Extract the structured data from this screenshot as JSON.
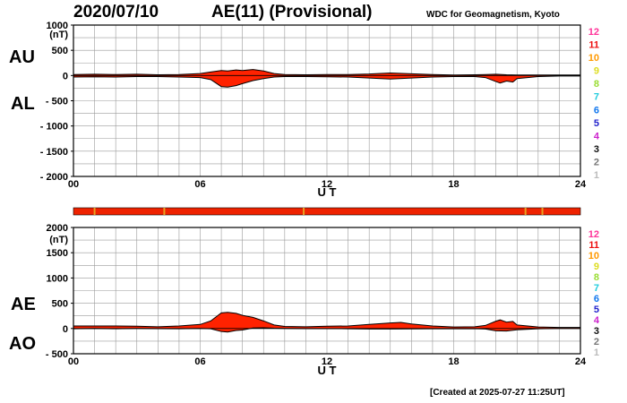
{
  "header": {
    "date": "2020/07/10",
    "title": "AE(11) (Provisional)",
    "source": "WDC for Geomagnetism, Kyoto"
  },
  "footer": {
    "created": "[Created at 2025-07-27 11:25UT]"
  },
  "colors": {
    "fill": "#ff2200",
    "grid": "#9a9a9a",
    "station_bar": "#ee2200",
    "station_marks": "#e8a020"
  },
  "chart_data": [
    {
      "type": "area",
      "name": "top-panel",
      "series_labels": [
        "AU",
        "AL"
      ],
      "unit_label": "(nT)",
      "ylim": [
        -2000,
        1000
      ],
      "yticks": [
        1000,
        500,
        0,
        -500,
        -1000,
        -1500,
        -2000
      ],
      "ytick_labels": [
        "1000",
        "500",
        "0",
        "- 500",
        "- 1000",
        "- 1500",
        "- 2000"
      ],
      "xlim": [
        0,
        24
      ],
      "xticks": [
        0,
        6,
        12,
        18,
        24
      ],
      "xtick_labels": [
        "00",
        "06",
        "12",
        "18",
        "24"
      ],
      "xlabel": "U T",
      "grid": true,
      "AU": {
        "x": [
          0,
          1,
          2,
          3,
          4,
          5,
          6,
          6.5,
          7,
          7.3,
          7.7,
          8,
          8.5,
          9,
          9.5,
          10,
          11,
          12,
          13,
          14,
          15,
          16,
          17,
          18,
          19,
          19.5,
          20,
          20.5,
          21,
          22,
          23,
          24
        ],
        "y": [
          20,
          25,
          20,
          25,
          15,
          20,
          40,
          70,
          100,
          90,
          110,
          100,
          120,
          90,
          40,
          20,
          15,
          20,
          20,
          30,
          50,
          35,
          20,
          10,
          15,
          20,
          25,
          15,
          10,
          10,
          10,
          10
        ]
      },
      "AL": {
        "x": [
          0,
          1,
          2,
          3,
          4,
          5,
          6,
          6.5,
          7,
          7.3,
          7.7,
          8,
          8.5,
          9,
          9.5,
          10,
          11,
          12,
          13,
          14,
          15,
          16,
          17,
          18,
          19,
          19.5,
          20,
          20.2,
          20.5,
          20.8,
          21,
          22,
          23,
          24
        ],
        "y": [
          -30,
          -25,
          -30,
          -20,
          -20,
          -30,
          -40,
          -80,
          -220,
          -230,
          -200,
          -160,
          -100,
          -60,
          -30,
          -20,
          -20,
          -25,
          -30,
          -50,
          -70,
          -50,
          -30,
          -20,
          -20,
          -40,
          -120,
          -150,
          -110,
          -130,
          -60,
          -20,
          -10,
          -10
        ]
      }
    },
    {
      "type": "area",
      "name": "bottom-panel",
      "series_labels": [
        "AE",
        "AO"
      ],
      "unit_label": "(nT)",
      "ylim": [
        -500,
        2000
      ],
      "yticks": [
        2000,
        1500,
        1000,
        500,
        0,
        -500
      ],
      "ytick_labels": [
        "2000",
        "1500",
        "1000",
        "500",
        "0",
        "- 500"
      ],
      "xlim": [
        0,
        24
      ],
      "xticks": [
        0,
        6,
        12,
        18,
        24
      ],
      "xtick_labels": [
        "00",
        "06",
        "12",
        "18",
        "24"
      ],
      "xlabel": "U T",
      "grid": true,
      "AE": {
        "x": [
          0,
          1,
          2,
          3,
          4,
          5,
          6,
          6.5,
          7,
          7.3,
          7.7,
          8,
          8.5,
          9,
          9.5,
          10,
          11,
          12,
          13,
          14,
          15,
          15.5,
          16,
          17,
          18,
          19,
          19.5,
          20,
          20.2,
          20.5,
          20.8,
          21,
          22,
          23,
          24
        ],
        "y": [
          50,
          50,
          50,
          45,
          35,
          50,
          80,
          150,
          310,
          320,
          300,
          260,
          220,
          150,
          70,
          40,
          35,
          45,
          50,
          80,
          110,
          120,
          90,
          50,
          30,
          35,
          60,
          145,
          170,
          125,
          140,
          70,
          30,
          20,
          20
        ]
      },
      "AO": {
        "x": [
          0,
          1,
          2,
          3,
          4,
          5,
          6,
          6.5,
          7,
          7.3,
          7.7,
          8,
          8.5,
          9,
          9.5,
          10,
          11,
          12,
          13,
          14,
          15,
          16,
          17,
          18,
          19,
          19.5,
          20,
          20.5,
          21,
          22,
          23,
          24
        ],
        "y": [
          -5,
          0,
          -5,
          0,
          -3,
          -5,
          0,
          -5,
          -60,
          -70,
          -40,
          -30,
          10,
          15,
          5,
          0,
          -3,
          -3,
          -5,
          -10,
          -10,
          -8,
          -5,
          -5,
          -3,
          -10,
          -45,
          -50,
          -25,
          -5,
          0,
          0
        ]
      }
    }
  ],
  "station_bar_marks": [
    1,
    4.3,
    10.9,
    21.4,
    22.2
  ],
  "activity_levels": [
    {
      "label": "12",
      "color": "#ff3399"
    },
    {
      "label": "11",
      "color": "#ee1111"
    },
    {
      "label": "10",
      "color": "#ff9900"
    },
    {
      "label": "9",
      "color": "#dddd22"
    },
    {
      "label": "8",
      "color": "#99dd33"
    },
    {
      "label": "7",
      "color": "#22ccdd"
    },
    {
      "label": "6",
      "color": "#1177ee"
    },
    {
      "label": "5",
      "color": "#2222cc"
    },
    {
      "label": "4",
      "color": "#cc22cc"
    },
    {
      "label": "3",
      "color": "#111111"
    },
    {
      "label": "2",
      "color": "#777777"
    },
    {
      "label": "1",
      "color": "#bbbbbb"
    }
  ]
}
